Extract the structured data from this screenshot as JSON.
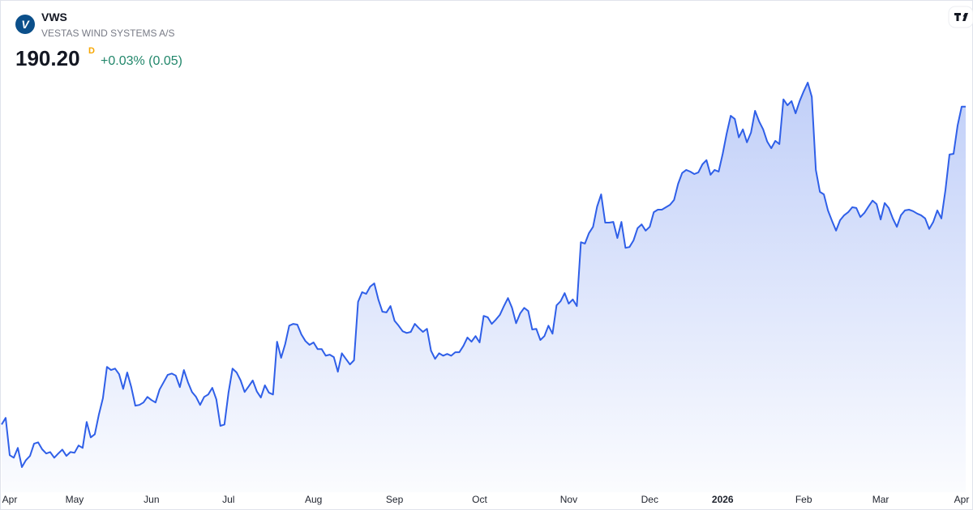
{
  "header": {
    "logo": "V",
    "symbol": "VWS",
    "name": "VESTAS WIND SYSTEMS A/S",
    "price": "190.20",
    "price_flag": "D",
    "change": "+0.03% (0.05)"
  },
  "chart_data": {
    "type": "area",
    "color": "#2f5fe8",
    "values": [
      99.2,
      101.1,
      90.4,
      89.7,
      92.5,
      87.0,
      89.0,
      90.2,
      93.7,
      94.1,
      92.1,
      90.9,
      91.3,
      89.7,
      90.9,
      92.0,
      90.2,
      91.3,
      91.1,
      93.2,
      92.5,
      99.9,
      95.5,
      96.4,
      102.0,
      106.7,
      115.7,
      114.8,
      115.2,
      113.6,
      109.4,
      114.1,
      109.9,
      104.6,
      104.8,
      105.5,
      107.1,
      106.2,
      105.5,
      109.2,
      111.3,
      113.4,
      113.8,
      113.2,
      109.9,
      114.8,
      111.3,
      108.5,
      107.1,
      104.8,
      107.1,
      107.8,
      109.7,
      106.4,
      98.8,
      99.2,
      108.3,
      115.2,
      114.1,
      111.8,
      108.5,
      110.1,
      111.8,
      108.7,
      106.9,
      110.4,
      108.3,
      107.8,
      122.9,
      118.3,
      122.2,
      127.5,
      128.0,
      127.8,
      125.0,
      123.1,
      122.0,
      122.7,
      120.8,
      120.8,
      118.9,
      119.2,
      118.5,
      114.3,
      119.6,
      118.0,
      116.4,
      117.6,
      134.3,
      137.1,
      136.6,
      138.7,
      139.6,
      135.0,
      131.5,
      131.3,
      133.1,
      128.9,
      127.5,
      125.9,
      125.4,
      125.7,
      128.0,
      126.8,
      125.7,
      126.6,
      120.3,
      118.0,
      119.6,
      118.9,
      119.4,
      118.9,
      119.9,
      119.9,
      121.7,
      124.1,
      122.9,
      124.5,
      122.7,
      130.3,
      129.9,
      128.0,
      129.2,
      130.6,
      133.1,
      135.4,
      132.6,
      128.2,
      131.0,
      132.6,
      131.7,
      126.4,
      126.6,
      123.4,
      124.5,
      127.5,
      125.2,
      133.3,
      134.5,
      136.8,
      133.8,
      135.0,
      133.1,
      151.4,
      151.0,
      154.0,
      155.8,
      161.6,
      165.1,
      157.0,
      157.0,
      157.2,
      152.6,
      157.2,
      149.8,
      150.0,
      151.9,
      155.4,
      156.5,
      154.7,
      155.8,
      160.0,
      160.7,
      160.7,
      161.4,
      162.1,
      163.5,
      168.1,
      171.2,
      172.1,
      171.6,
      170.9,
      171.4,
      173.7,
      174.9,
      170.7,
      172.1,
      171.6,
      176.7,
      182.5,
      187.6,
      186.7,
      181.4,
      183.7,
      180.0,
      182.8,
      189.0,
      186.0,
      183.7,
      180.2,
      178.3,
      180.4,
      179.5,
      192.3,
      190.6,
      191.8,
      188.3,
      191.8,
      194.6,
      197.1,
      193.0,
      172.1,
      165.8,
      165.1,
      160.5,
      157.5,
      154.7,
      157.7,
      159.1,
      160.0,
      161.4,
      161.2,
      158.6,
      159.8,
      161.6,
      163.3,
      162.3,
      157.9,
      162.6,
      161.2,
      158.2,
      155.8,
      159.1,
      160.5,
      160.7,
      160.3,
      159.6,
      159.1,
      158.2,
      155.2,
      157.2,
      160.5,
      158.2,
      166.3,
      176.5,
      176.7,
      184.8,
      190.2,
      190.2
    ],
    "xticks": [
      {
        "value": 2,
        "label": "Apr"
      },
      {
        "value": 18,
        "label": "May"
      },
      {
        "value": 37,
        "label": "Jun"
      },
      {
        "value": 56,
        "label": "Jul"
      },
      {
        "value": 77,
        "label": "Aug"
      },
      {
        "value": 97,
        "label": "Sep"
      },
      {
        "value": 118,
        "label": "Oct"
      },
      {
        "value": 140,
        "label": "Nov"
      },
      {
        "value": 160,
        "label": "Dec"
      },
      {
        "value": 178,
        "label": "2026"
      },
      {
        "value": 198,
        "label": "Feb"
      },
      {
        "value": 217,
        "label": "Mar"
      },
      {
        "value": 237,
        "label": "Apr"
      }
    ]
  }
}
